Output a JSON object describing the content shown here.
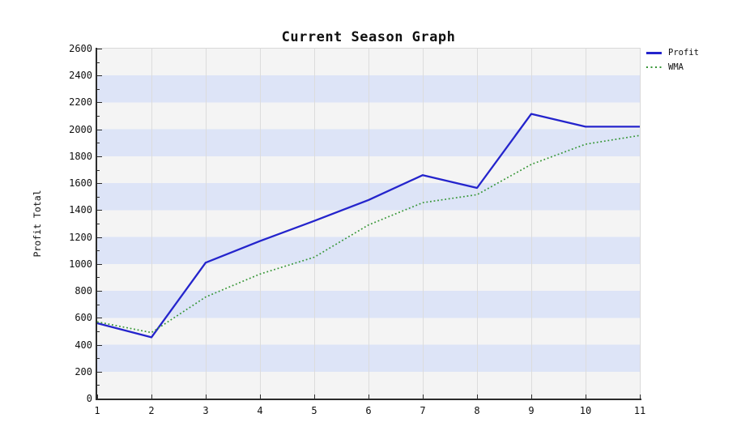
{
  "chart_data": {
    "type": "line",
    "title": "Current Season Graph",
    "ylabel": "Profit Total",
    "xlabel": "",
    "xlim": [
      1,
      11
    ],
    "ylim": [
      0,
      2600
    ],
    "y_tick_step": 200,
    "y_minor_step": 100,
    "x_ticks": [
      1,
      2,
      3,
      4,
      5,
      6,
      7,
      8,
      9,
      10,
      11
    ],
    "y_ticks": [
      0,
      200,
      400,
      600,
      800,
      1000,
      1200,
      1400,
      1600,
      1800,
      2000,
      2200,
      2400,
      2600
    ],
    "x": [
      1,
      2,
      3,
      4,
      5,
      6,
      7,
      8,
      9,
      10,
      11
    ],
    "series": [
      {
        "name": "Profit",
        "marker": "line",
        "color": "#2424cc",
        "values": [
          560,
          455,
          1010,
          1170,
          1320,
          1475,
          1660,
          1565,
          2115,
          2020,
          2020
        ]
      },
      {
        "name": "WMA",
        "marker": "dots",
        "color": "#369636",
        "values": [
          570,
          490,
          755,
          925,
          1050,
          1290,
          1455,
          1515,
          1740,
          1890,
          1955
        ]
      }
    ],
    "legend_position": "top-right",
    "grid": "vertical-only",
    "band_colors": [
      "#f4f4f4",
      "#dde4f7"
    ],
    "gridline_color": "#dcdcdc",
    "axis_color": "#2b2b2b"
  }
}
